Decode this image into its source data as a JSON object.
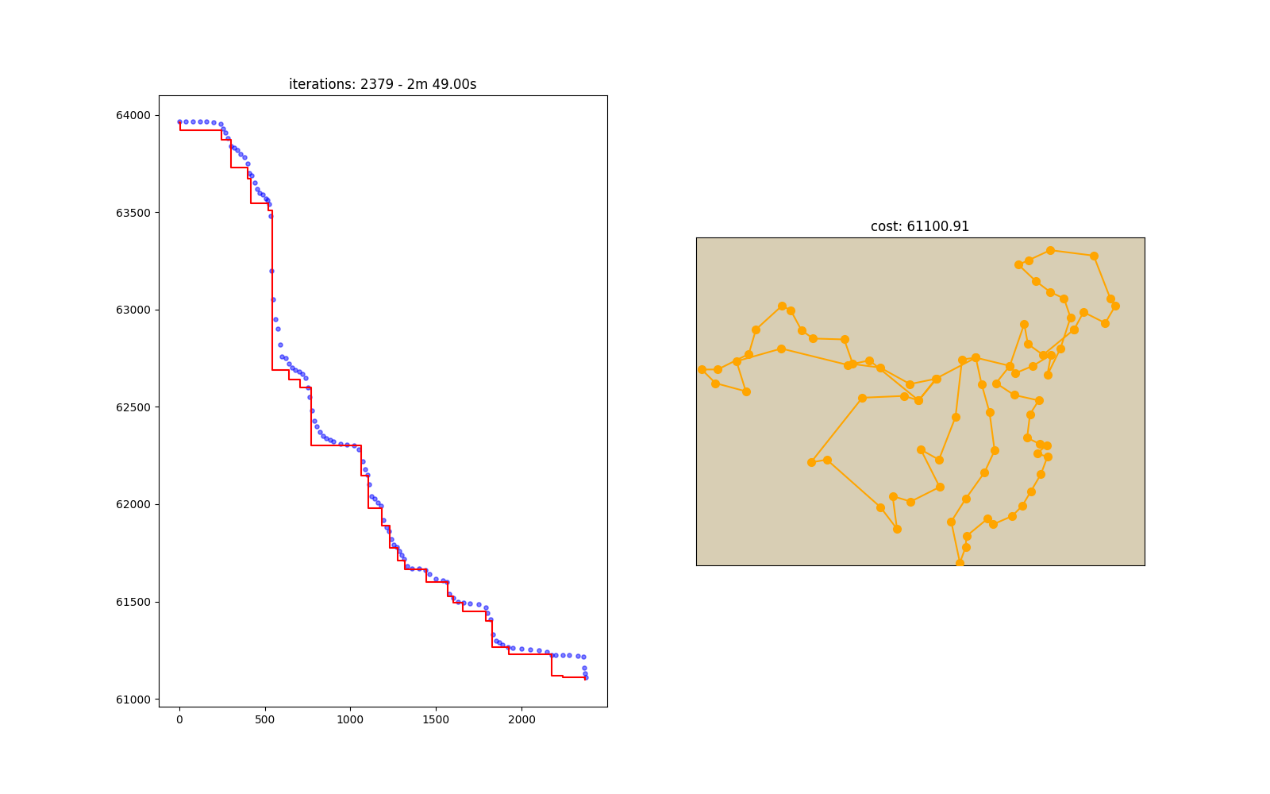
{
  "chart_data": [
    {
      "type": "line",
      "title": "iterations: 2379 - 2m 49.00s",
      "xlim": [
        -120,
        2500
      ],
      "ylim": [
        60960,
        64100
      ],
      "xticks": [
        0,
        500,
        1000,
        1500,
        2000
      ],
      "yticks": [
        61000,
        61500,
        62000,
        62500,
        63000,
        63500,
        64000
      ],
      "grid": false,
      "series": [
        {
          "type": "scatter",
          "color": "#0000ff",
          "marker": "o",
          "x": [
            0,
            40,
            80,
            120,
            160,
            200,
            240,
            255,
            270,
            285,
            300,
            320,
            340,
            360,
            380,
            400,
            410,
            425,
            440,
            455,
            470,
            490,
            505,
            515,
            525,
            535,
            540,
            550,
            560,
            575,
            590,
            600,
            620,
            640,
            660,
            680,
            700,
            720,
            740,
            750,
            760,
            775,
            790,
            805,
            820,
            840,
            860,
            880,
            900,
            940,
            980,
            1020,
            1050,
            1070,
            1085,
            1100,
            1110,
            1125,
            1140,
            1160,
            1180,
            1195,
            1210,
            1225,
            1240,
            1255,
            1270,
            1285,
            1300,
            1315,
            1330,
            1360,
            1400,
            1440,
            1460,
            1500,
            1540,
            1565,
            1580,
            1600,
            1630,
            1660,
            1700,
            1750,
            1790,
            1800,
            1820,
            1835,
            1850,
            1870,
            1890,
            1920,
            1950,
            2000,
            2050,
            2100,
            2150,
            2175,
            2200,
            2240,
            2280,
            2330,
            2360,
            2365,
            2370,
            2375
          ],
          "values": [
            63965,
            63965,
            63965,
            63965,
            63965,
            63962,
            63955,
            63930,
            63910,
            63880,
            63840,
            63830,
            63820,
            63800,
            63780,
            63750,
            63700,
            63690,
            63650,
            63620,
            63600,
            63590,
            63570,
            63560,
            63540,
            63480,
            63200,
            63050,
            62950,
            62900,
            62820,
            62760,
            62750,
            62720,
            62700,
            62690,
            62680,
            62670,
            62650,
            62600,
            62550,
            62480,
            62430,
            62400,
            62370,
            62350,
            62340,
            62330,
            62320,
            62310,
            62305,
            62300,
            62280,
            62220,
            62180,
            62150,
            62100,
            62040,
            62030,
            62010,
            61990,
            61920,
            61880,
            61860,
            61820,
            61790,
            61780,
            61760,
            61740,
            61720,
            61680,
            61670,
            61668,
            61660,
            61640,
            61615,
            61610,
            61600,
            61540,
            61520,
            61500,
            61495,
            61490,
            61485,
            61470,
            61440,
            61410,
            61330,
            61300,
            61290,
            61280,
            61265,
            61260,
            61258,
            61255,
            61250,
            61240,
            61225,
            61225,
            61225,
            61225,
            61220,
            61215,
            61160,
            61130,
            61110
          ]
        },
        {
          "type": "line",
          "color": "#ff0000",
          "line_style": "step",
          "x": [
            0,
            5,
            245,
            300,
            400,
            420,
            520,
            545,
            640,
            705,
            770,
            1065,
            1105,
            1185,
            1230,
            1275,
            1320,
            1445,
            1570,
            1600,
            1655,
            1790,
            1830,
            1925,
            2175,
            2240,
            2370
          ],
          "values": [
            63960,
            63920,
            63870,
            63730,
            63670,
            63545,
            63510,
            62690,
            62640,
            62600,
            62300,
            62145,
            61980,
            61890,
            61775,
            61710,
            61665,
            61600,
            61525,
            61495,
            61450,
            61400,
            61265,
            61230,
            61120,
            61110,
            61100
          ]
        }
      ]
    },
    {
      "type": "line",
      "title": "cost: 61100.91",
      "xlim": [
        73,
        135
      ],
      "ylim": [
        18,
        54
      ],
      "tick_labels": false,
      "series": [
        {
          "color": "#ffa500",
          "marker": "o",
          "line_style": "solid",
          "x": [
            125.3,
            126.6,
            129.6,
            131,
            130.3,
            128,
            122,
            119,
            117.6,
            120,
            122,
            123.9,
            124.8,
            123.4,
            121.6,
            122.1,
            119.6,
            117.2,
            116.4,
            114.5,
            117,
            120.4,
            119.2,
            118.8,
            120.6,
            121.5,
            120.2,
            121.6,
            120.7,
            119.3,
            118.1,
            116.7,
            114.1,
            113.3,
            110.4,
            110.3,
            109.5,
            108.3,
            110.3,
            112.9,
            114.3,
            113.6,
            112.5,
            111.7,
            109.8,
            108.9,
            106.6,
            104.1,
            106.7,
            102.7,
            100.2,
            100.8,
            98.5,
            91.1,
            88.9,
            96,
            101.8,
            103.8,
            106.3,
            102.6,
            98.5,
            94.7,
            93.5,
            89.2,
            87.6,
            86.1,
            84.9,
            81.3,
            80.3,
            76,
            73.8,
            75.7,
            79.9,
            78.6,
            84.8,
            94,
            97,
            103.8,
            106.2,
            111.7,
            116.4,
            118.4,
            118.9,
            121,
            125.3
          ],
          "values": [
            43.9,
            45.8,
            44.6,
            46.5,
            47.3,
            52,
            52.6,
            51.5,
            51,
            49.2,
            48,
            47.3,
            45.2,
            41.8,
            38.9,
            41.1,
            39.9,
            39.1,
            39.9,
            38,
            36.7,
            36.1,
            34.6,
            32,
            31.3,
            31.2,
            30.3,
            29.9,
            28,
            26.1,
            24.5,
            23.4,
            22.5,
            23.1,
            21.2,
            20,
            18.3,
            22.8,
            25.3,
            28.2,
            30.6,
            34.8,
            37.9,
            40.8,
            40.6,
            34.3,
            29.6,
            30.7,
            26.6,
            25,
            25.6,
            22,
            24.4,
            29.6,
            29.3,
            36.4,
            36.6,
            36.1,
            38.5,
            37.9,
            39.7,
            40.1,
            42.8,
            42.9,
            43.8,
            46,
            46.5,
            43.9,
            41.2,
            39.5,
            39.5,
            38,
            37.1,
            40.4,
            41.8,
            40,
            40.5,
            36.1,
            38.5,
            40.8,
            39.9,
            44.5,
            42.3,
            41.1,
            43.9
          ]
        }
      ]
    }
  ]
}
